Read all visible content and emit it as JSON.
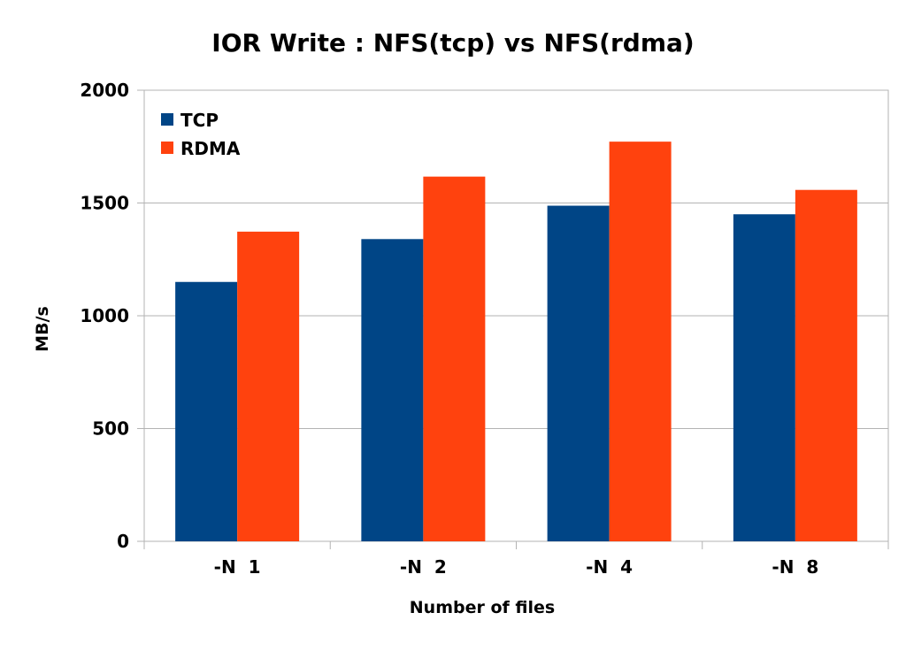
{
  "chart_data": {
    "type": "bar",
    "title": "IOR Write : NFS(tcp) vs NFS(rdma)",
    "xlabel": "Number of files",
    "ylabel": "MB/s",
    "categories": [
      "-N  1",
      "-N  2",
      "-N  4",
      "-N  8"
    ],
    "series": [
      {
        "name": "TCP",
        "color": "#004586",
        "values": [
          1150,
          1340,
          1488,
          1450
        ]
      },
      {
        "name": "RDMA",
        "color": "#ff420e",
        "values": [
          1373,
          1617,
          1772,
          1558
        ]
      }
    ],
    "ylim": [
      0,
      2000
    ],
    "yticks": [
      0,
      500,
      1000,
      1500,
      2000
    ],
    "grid": true,
    "legend_position": "top-left"
  }
}
